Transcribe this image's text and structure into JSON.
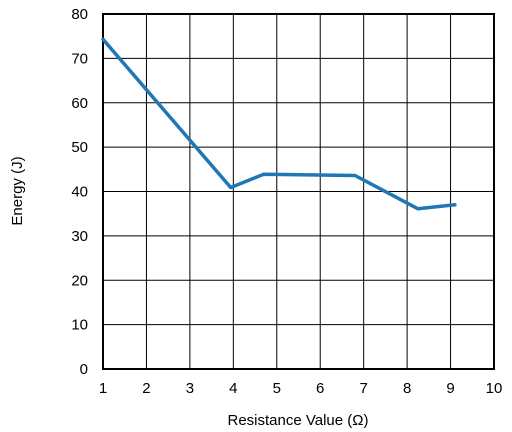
{
  "chart_data": {
    "type": "line",
    "title": "",
    "xlabel": "Resistance Value (Ω)",
    "ylabel": "Energy (J)",
    "xlim": [
      1,
      10
    ],
    "ylim": [
      0,
      80
    ],
    "xticks": [
      "1",
      "2",
      "3",
      "4",
      "5",
      "6",
      "7",
      "8",
      "9",
      "10"
    ],
    "yticks": [
      "0",
      "10",
      "20",
      "30",
      "40",
      "50",
      "60",
      "70",
      "80"
    ],
    "grid": true,
    "series": [
      {
        "color": "#1f77b4",
        "x": [
          1.0,
          3.94,
          4.7,
          6.8,
          8.25,
          9.1
        ],
        "y": [
          74.3,
          40.9,
          43.9,
          43.6,
          36.1,
          37.0
        ]
      }
    ]
  }
}
